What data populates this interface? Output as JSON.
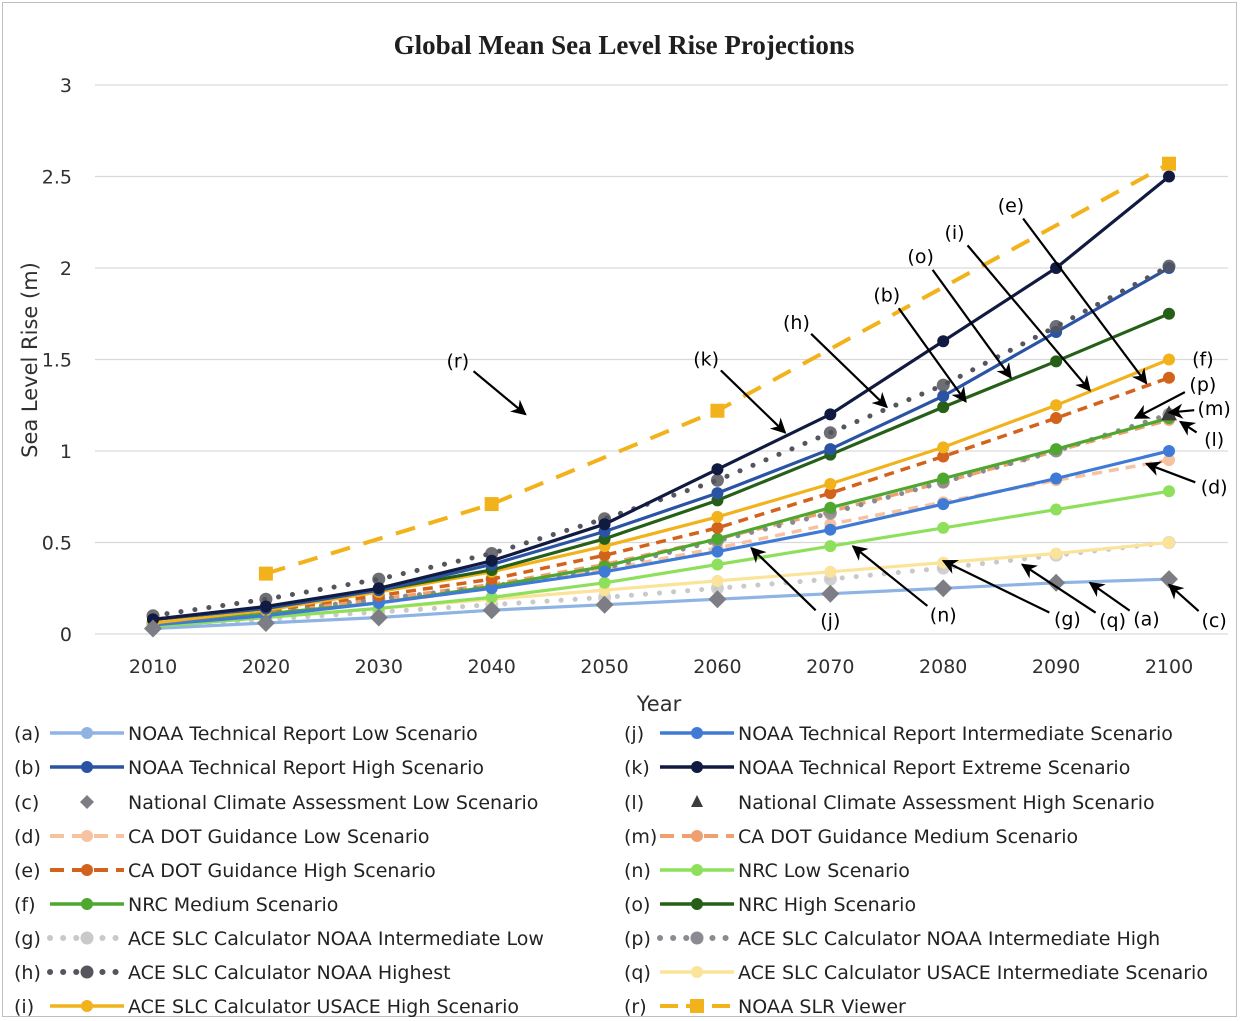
{
  "chart_data": {
    "type": "line",
    "title": "Global Mean Sea Level Rise Projections",
    "xlabel": "Year",
    "ylabel": "Sea Level Rise (m)",
    "xlim": [
      2010,
      2100
    ],
    "ylim": [
      0,
      3
    ],
    "x": [
      2010,
      2020,
      2030,
      2040,
      2050,
      2060,
      2070,
      2080,
      2090,
      2100
    ],
    "y_ticks": [
      "0",
      "0.5",
      "1",
      "1.5",
      "2",
      "2.5",
      "3"
    ],
    "x_ticks": [
      "2010",
      "2020",
      "2030",
      "2040",
      "2050",
      "2060",
      "2070",
      "2080",
      "2090",
      "2100"
    ],
    "grid": "horizontal",
    "legend_position": "bottom",
    "series": [
      {
        "letter": "(a)",
        "name": "NOAA Technical Report Low Scenario",
        "color": "#8fb4e3",
        "style": "solid-marker",
        "values": [
          0.03,
          0.06,
          0.09,
          0.13,
          0.16,
          0.19,
          0.22,
          0.25,
          0.28,
          0.3
        ]
      },
      {
        "letter": "(b)",
        "name": "NOAA Technical Report High Scenario",
        "color": "#2a54a3",
        "style": "solid-marker",
        "values": [
          0.08,
          0.14,
          0.24,
          0.38,
          0.56,
          0.77,
          1.01,
          1.3,
          1.65,
          2.0
        ]
      },
      {
        "letter": "(c)",
        "name": "National Climate Assessment Low Scenario",
        "color": "#7d7d86",
        "style": "diamond",
        "values": [
          0.03,
          0.06,
          0.09,
          0.13,
          0.16,
          0.19,
          0.22,
          0.25,
          0.28,
          0.3
        ]
      },
      {
        "letter": "(d)",
        "name": "CA DOT Guidance Low Scenario",
        "color": "#f7c2a0",
        "style": "dashed-marker",
        "values": [
          0.05,
          0.11,
          0.17,
          0.25,
          0.35,
          0.47,
          0.6,
          0.72,
          0.84,
          0.95
        ]
      },
      {
        "letter": "(e)",
        "name": "CA DOT Guidance High Scenario",
        "color": "#d2631c",
        "style": "dashed-marker",
        "values": [
          0.06,
          0.13,
          0.21,
          0.3,
          0.43,
          0.58,
          0.77,
          0.97,
          1.18,
          1.4
        ]
      },
      {
        "letter": "(f)",
        "name": "NRC Medium Scenario",
        "color": "#4ea72e",
        "style": "solid-marker",
        "values": [
          0.05,
          0.11,
          0.17,
          0.26,
          0.37,
          0.52,
          0.69,
          0.85,
          1.01,
          1.18
        ]
      },
      {
        "letter": "(g)",
        "name": "ACE SLC Calculator NOAA Intermediate Low",
        "color": "#c9c9c9",
        "style": "dotted-marker",
        "values": [
          0.04,
          0.08,
          0.12,
          0.16,
          0.2,
          0.25,
          0.3,
          0.36,
          0.43,
          0.5
        ]
      },
      {
        "letter": "(h)",
        "name": "ACE SLC Calculator NOAA Highest",
        "color": "#55555d",
        "style": "dotted-marker",
        "values": [
          0.1,
          0.19,
          0.3,
          0.44,
          0.63,
          0.84,
          1.1,
          1.36,
          1.68,
          2.01
        ]
      },
      {
        "letter": "(i)",
        "name": "ACE SLC Calculator USACE High  Scenario",
        "color": "#f2b21b",
        "style": "solid-marker",
        "values": [
          0.06,
          0.13,
          0.23,
          0.34,
          0.48,
          0.64,
          0.82,
          1.02,
          1.25,
          1.5
        ]
      },
      {
        "letter": "(j)",
        "name": "NOAA Technical Report Intermediate Scenario",
        "color": "#3f7bd6",
        "style": "solid-marker",
        "values": [
          0.05,
          0.1,
          0.17,
          0.25,
          0.34,
          0.45,
          0.57,
          0.71,
          0.85,
          1.0
        ]
      },
      {
        "letter": "(k)",
        "name": "NOAA Technical Report Extreme Scenario",
        "color": "#111a40",
        "style": "solid-marker",
        "values": [
          0.08,
          0.15,
          0.25,
          0.4,
          0.6,
          0.9,
          1.2,
          1.6,
          2.0,
          2.5
        ]
      },
      {
        "letter": "(l)",
        "name": "National Climate Assessment High Scenario",
        "color": "#3c3c3c",
        "style": "triangle",
        "values": [
          null,
          null,
          null,
          null,
          null,
          null,
          null,
          null,
          null,
          1.2
        ]
      },
      {
        "letter": "(m)",
        "name": "CA DOT Guidance Medium Scenario",
        "color": "#f0a070",
        "style": "dashed-marker",
        "values": [
          0.05,
          0.12,
          0.19,
          0.27,
          0.38,
          0.52,
          0.67,
          0.83,
          1.0,
          1.17
        ]
      },
      {
        "letter": "(n)",
        "name": "NRC Low Scenario",
        "color": "#8ee05c",
        "style": "solid-marker",
        "values": [
          0.04,
          0.09,
          0.14,
          0.2,
          0.28,
          0.38,
          0.48,
          0.58,
          0.68,
          0.78
        ]
      },
      {
        "letter": "(o)",
        "name": "NRC High Scenario",
        "color": "#266018",
        "style": "solid-marker",
        "values": [
          0.08,
          0.14,
          0.24,
          0.35,
          0.52,
          0.73,
          0.98,
          1.24,
          1.49,
          1.75
        ]
      },
      {
        "letter": "(p)",
        "name": "ACE SLC Calculator NOAA Intermediate High",
        "color": "#8a8a92",
        "style": "dotted-marker",
        "values": [
          0.06,
          0.12,
          0.19,
          0.26,
          0.36,
          0.51,
          0.66,
          0.83,
          1.0,
          1.2
        ]
      },
      {
        "letter": "(q)",
        "name": "ACE SLC Calculator USACE Intermediate  Scenario",
        "color": "#fbe39a",
        "style": "solid-marker",
        "values": [
          0.05,
          0.09,
          0.14,
          0.19,
          0.24,
          0.29,
          0.34,
          0.39,
          0.44,
          0.5
        ]
      },
      {
        "letter": "(r)",
        "name": "NOAA SLR Viewer",
        "color": "#f2b21b",
        "style": "dashed-square",
        "values": [
          null,
          0.33,
          null,
          0.71,
          null,
          1.22,
          null,
          null,
          null,
          2.57
        ]
      }
    ],
    "annotations": [
      {
        "label": "(r)",
        "year": 2037,
        "value": 1.49,
        "target_year": 2043,
        "target_value": 1.2
      },
      {
        "label": "(k)",
        "year": 2059,
        "value": 1.5,
        "target_year": 2066,
        "target_value": 1.1
      },
      {
        "label": "(h)",
        "year": 2067,
        "value": 1.7,
        "target_year": 2075,
        "target_value": 1.24
      },
      {
        "label": "(b)",
        "year": 2075,
        "value": 1.85,
        "target_year": 2082,
        "target_value": 1.27
      },
      {
        "label": "(o)",
        "year": 2078,
        "value": 2.06,
        "target_year": 2086,
        "target_value": 1.4
      },
      {
        "label": "(i)",
        "year": 2081,
        "value": 2.19,
        "target_year": 2093,
        "target_value": 1.33
      },
      {
        "label": "(e)",
        "year": 2086,
        "value": 2.34,
        "target_year": 2098,
        "target_value": 1.37
      },
      {
        "label": "(f)",
        "year": 2103,
        "value": 1.5,
        "target_year": 2101,
        "target_value": 1.5
      },
      {
        "label": "(p)",
        "year": 2103,
        "value": 1.36,
        "target_year": 2097,
        "target_value": 1.18
      },
      {
        "label": "(m)",
        "year": 2104,
        "value": 1.23,
        "target_year": 2100,
        "target_value": 1.21
      },
      {
        "label": "(l)",
        "year": 2104,
        "value": 1.06,
        "target_year": 2101,
        "target_value": 1.16
      },
      {
        "label": "(d)",
        "year": 2104,
        "value": 0.8,
        "target_year": 2098,
        "target_value": 0.93
      },
      {
        "label": "(j)",
        "year": 2070,
        "value": 0.07,
        "target_year": 2063,
        "target_value": 0.47
      },
      {
        "label": "(n)",
        "year": 2080,
        "value": 0.1,
        "target_year": 2072,
        "target_value": 0.48
      },
      {
        "label": "(g)",
        "year": 2091,
        "value": 0.08,
        "target_year": 2080,
        "target_value": 0.4
      },
      {
        "label": "(q)",
        "year": 2095,
        "value": 0.07,
        "target_year": 2087,
        "target_value": 0.38
      },
      {
        "label": "(a)",
        "year": 2098,
        "value": 0.08,
        "target_year": 2093,
        "target_value": 0.28
      },
      {
        "label": "(c)",
        "year": 2104,
        "value": 0.07,
        "target_year": 2100,
        "target_value": 0.27
      }
    ]
  }
}
